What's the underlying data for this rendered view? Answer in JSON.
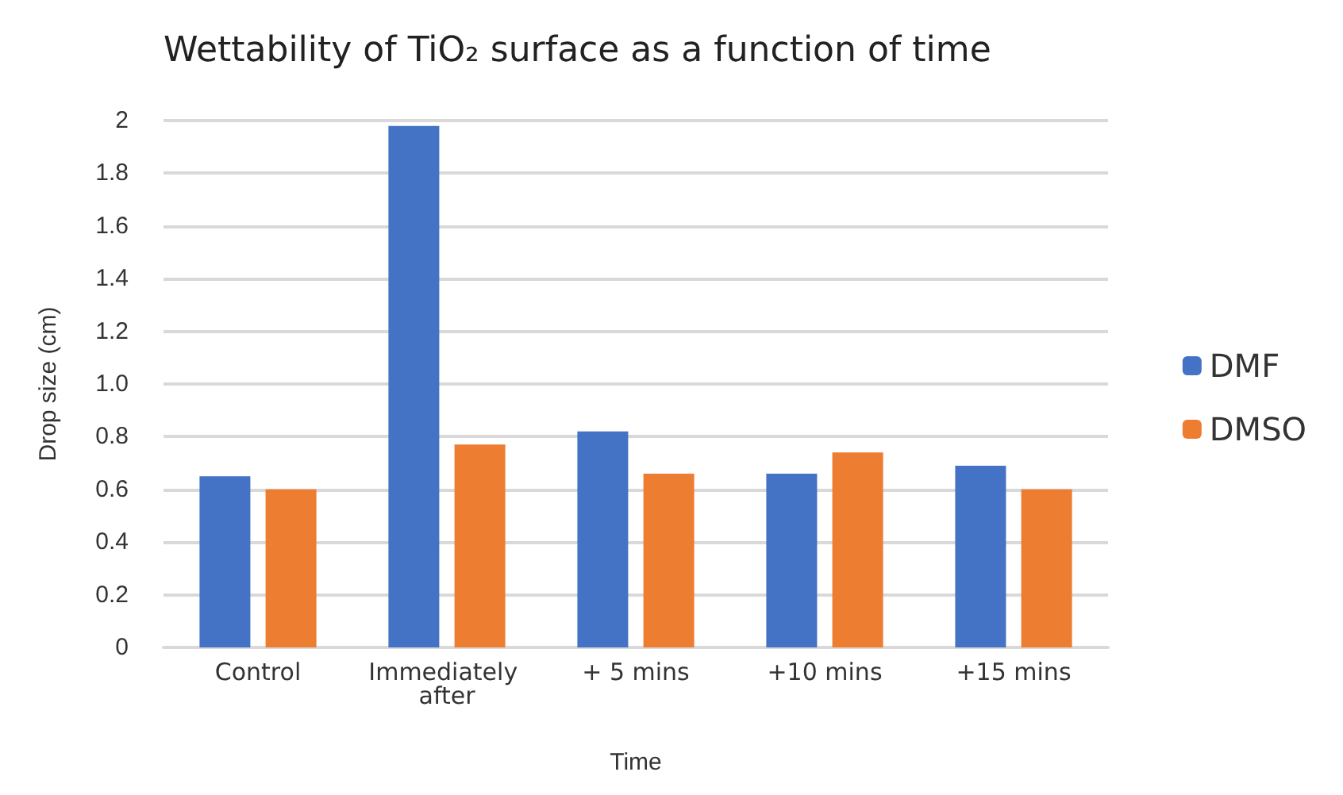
{
  "chart_data": {
    "type": "bar",
    "title": "Wettability of TiO₂ surface as a function of time",
    "xlabel": "Time",
    "ylabel": "Drop size (cm)",
    "categories": [
      "Control",
      "Immediately after",
      "+ 5 mins",
      "+10 mins",
      "+15 mins"
    ],
    "series": [
      {
        "name": "DMF",
        "color": "#4472c4",
        "values": [
          0.65,
          1.98,
          0.82,
          0.66,
          0.69
        ]
      },
      {
        "name": "DMSO",
        "color": "#ed7d31",
        "values": [
          0.6,
          0.77,
          0.66,
          0.74,
          0.6
        ]
      }
    ],
    "ylim": [
      0,
      2
    ],
    "yticks": [
      0,
      0.2,
      0.4,
      0.6,
      0.8,
      {
        "value": 1,
        "label": "1.0"
      },
      1.2,
      1.4,
      1.6,
      1.8,
      2
    ],
    "grid": "y",
    "legend": "right"
  }
}
